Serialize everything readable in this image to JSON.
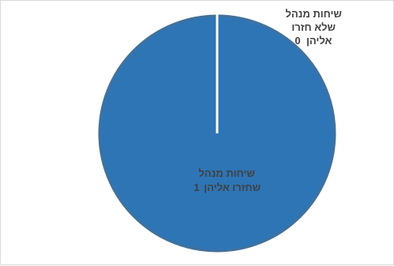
{
  "chart_data": {
    "type": "pie",
    "title": "",
    "slices": [
      {
        "name_line1": "שיחות מנהל",
        "name_line2": "שלא חזרו",
        "name_line3": "אליהן",
        "value": 0,
        "value_label": "0",
        "color": "#2e75b6"
      },
      {
        "name_line1": "שיחות מנהל",
        "name_line2": "שחזרו אליהן",
        "value": 1,
        "value_label": "1",
        "color": "#2e75b6"
      }
    ],
    "legend": "none",
    "slice_border_color": "#ffffff",
    "outline_color": "#41719c",
    "label_color": "#404040"
  }
}
